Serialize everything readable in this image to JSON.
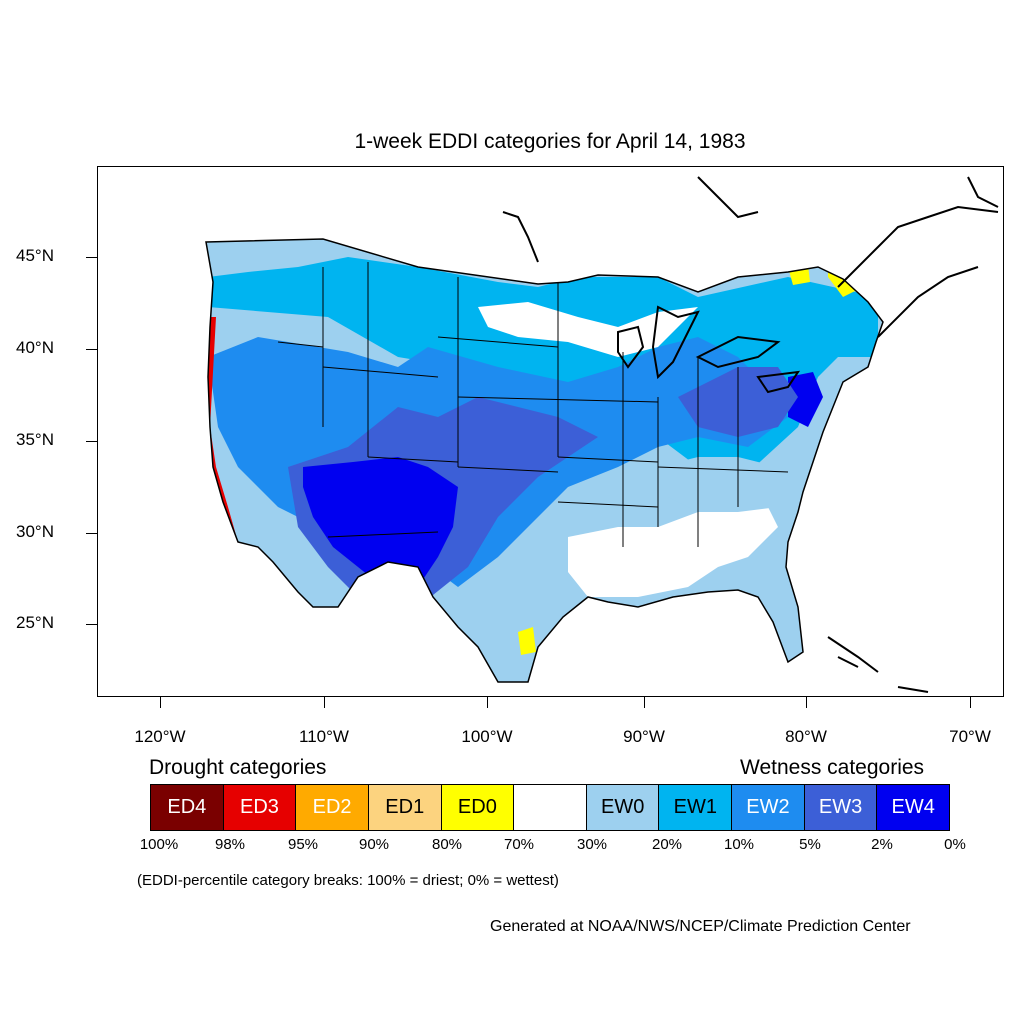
{
  "title": "1-week EDDI categories for April 14, 1983",
  "map": {
    "type": "choropleth",
    "region": "Contiguous United States",
    "y_ticks": [
      "45°N",
      "40°N",
      "35°N",
      "30°N",
      "25°N"
    ],
    "x_ticks": [
      "120°W",
      "110°W",
      "100°W",
      "90°W",
      "80°W",
      "70°W"
    ]
  },
  "legend": {
    "drought_heading": "Drought categories",
    "wetness_heading": "Wetness categories",
    "categories": [
      {
        "label": "ED4",
        "color": "#7a0000",
        "text_color": "#ffffff"
      },
      {
        "label": "ED3",
        "color": "#e60000",
        "text_color": "#ffffff"
      },
      {
        "label": "ED2",
        "color": "#ffaa00",
        "text_color": "#ffffff"
      },
      {
        "label": "ED1",
        "color": "#fcd37f",
        "text_color": "#000000"
      },
      {
        "label": "ED0",
        "color": "#ffff00",
        "text_color": "#000000"
      },
      {
        "label": "",
        "color": "#ffffff",
        "text_color": "#000000"
      },
      {
        "label": "EW0",
        "color": "#9dd0ef",
        "text_color": "#000000"
      },
      {
        "label": "EW1",
        "color": "#00b4f0",
        "text_color": "#000000"
      },
      {
        "label": "EW2",
        "color": "#1e8cf0",
        "text_color": "#ffffff"
      },
      {
        "label": "EW3",
        "color": "#3c5fd7",
        "text_color": "#ffffff"
      },
      {
        "label": "EW4",
        "color": "#0000f0",
        "text_color": "#ffffff"
      }
    ],
    "breaks": [
      "100%",
      "98%",
      "95%",
      "90%",
      "80%",
      "70%",
      "30%",
      "20%",
      "10%",
      "5%",
      "2%",
      "0%"
    ]
  },
  "note": "(EDDI-percentile category breaks: 100% = driest; 0% = wettest)",
  "credit": "Generated at NOAA/NWS/NCEP/Climate Prediction Center"
}
